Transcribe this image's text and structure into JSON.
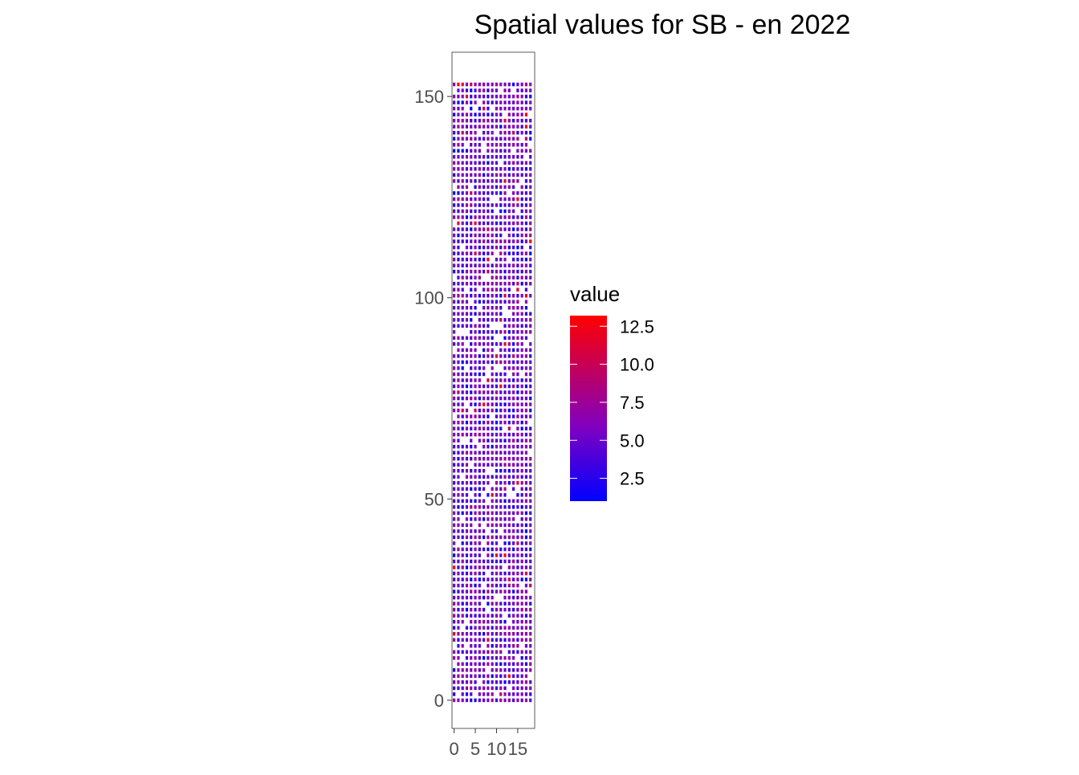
{
  "chart_data": {
    "type": "heatmap",
    "title": "Spatial values for SB - en 2022",
    "xlabel": "",
    "ylabel": "",
    "x_ticks": [
      0,
      5,
      10,
      15
    ],
    "y_ticks": [
      0,
      50,
      100,
      150
    ],
    "xlim": [
      -0.5,
      19
    ],
    "ylim": [
      -7,
      161
    ],
    "grid": false,
    "legend": {
      "title": "value",
      "position": "right",
      "breaks": [
        12.5,
        10.0,
        7.5,
        5.0,
        2.5
      ],
      "break_labels": [
        "12.5",
        "10.0",
        "7.5",
        "5.0",
        "2.5"
      ],
      "range": [
        1,
        13.2
      ],
      "low_color": "#0000FF",
      "high_color": "#FF0000"
    },
    "grid_cells": {
      "x_values": [
        0,
        1,
        2,
        3,
        4,
        5,
        6,
        7,
        8,
        9,
        10,
        11,
        12,
        13,
        14,
        15,
        16,
        17,
        18
      ],
      "y_start": 0,
      "y_end": 153,
      "y_step": 1.5,
      "note_missing": "scattered empty cells"
    },
    "approx_value_pattern": "mostly 3-8 (purple), occasional highs near 12 and lows near 1"
  }
}
